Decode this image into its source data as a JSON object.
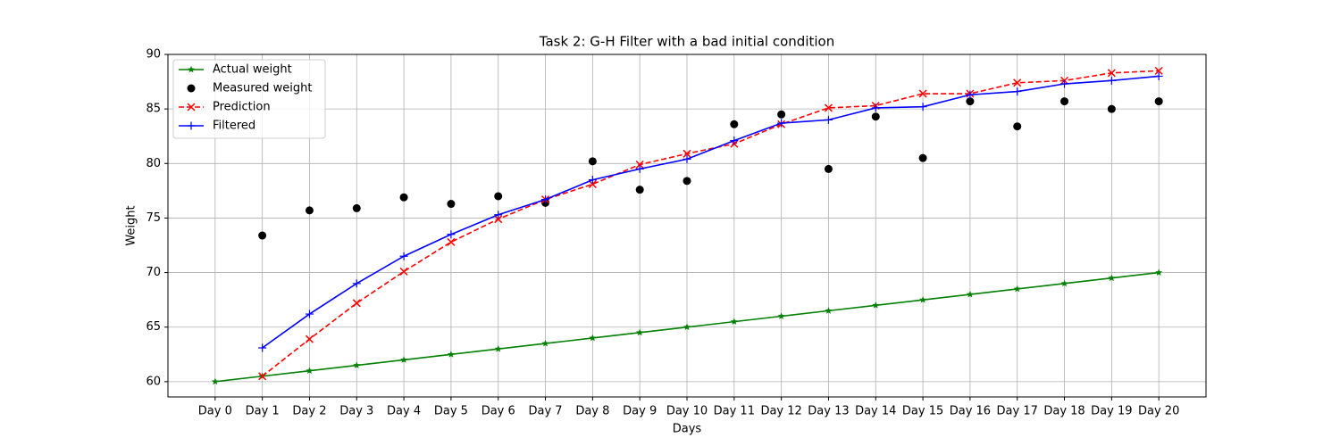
{
  "chart_data": {
    "type": "line",
    "title": "Task 2: G-H Filter with a bad initial condition",
    "x_label": "Days",
    "y_label": "Weight",
    "categories": [
      "Day 0",
      "Day 1",
      "Day 2",
      "Day 3",
      "Day 4",
      "Day 5",
      "Day 6",
      "Day 7",
      "Day 8",
      "Day 9",
      "Day 10",
      "Day 11",
      "Day 12",
      "Day 13",
      "Day 14",
      "Day 15",
      "Day 16",
      "Day 17",
      "Day 18",
      "Day 19",
      "Day 20"
    ],
    "series": [
      {
        "name": "Actual weight",
        "color": "#008000",
        "marker": "star",
        "line": "solid",
        "values": [
          60,
          60.5,
          61,
          61.5,
          62,
          62.5,
          63,
          63.5,
          64,
          64.5,
          65,
          65.5,
          66,
          66.5,
          67,
          67.5,
          68,
          68.5,
          69,
          69.5,
          70
        ]
      },
      {
        "name": "Measured weight",
        "color": "#000000",
        "marker": "circle",
        "line": "none",
        "values": [
          null,
          73.4,
          75.7,
          75.9,
          76.9,
          76.3,
          77.0,
          76.4,
          80.2,
          77.6,
          78.4,
          83.6,
          84.5,
          79.5,
          84.3,
          80.5,
          85.7,
          83.4,
          85.7,
          85.0,
          85.7
        ]
      },
      {
        "name": "Prediction",
        "color": "#ff0000",
        "marker": "x",
        "line": "dashed",
        "values": [
          null,
          60.5,
          63.9,
          67.2,
          70.1,
          72.8,
          74.9,
          76.7,
          78.1,
          79.9,
          80.9,
          81.8,
          83.6,
          85.1,
          85.3,
          86.4,
          86.4,
          87.4,
          87.6,
          88.3,
          88.5
        ]
      },
      {
        "name": "Filtered",
        "color": "#0000ff",
        "marker": "plus",
        "line": "solid",
        "values": [
          null,
          63.1,
          66.2,
          69.0,
          71.5,
          73.5,
          75.3,
          76.7,
          78.5,
          79.5,
          80.4,
          82.1,
          83.7,
          84.0,
          85.1,
          85.2,
          86.3,
          86.6,
          87.3,
          87.6,
          88.0
        ]
      }
    ],
    "ylim": [
      58.6,
      90
    ],
    "yticks": [
      60,
      65,
      70,
      75,
      80,
      85,
      90
    ],
    "grid": true,
    "legend": "upper left"
  }
}
